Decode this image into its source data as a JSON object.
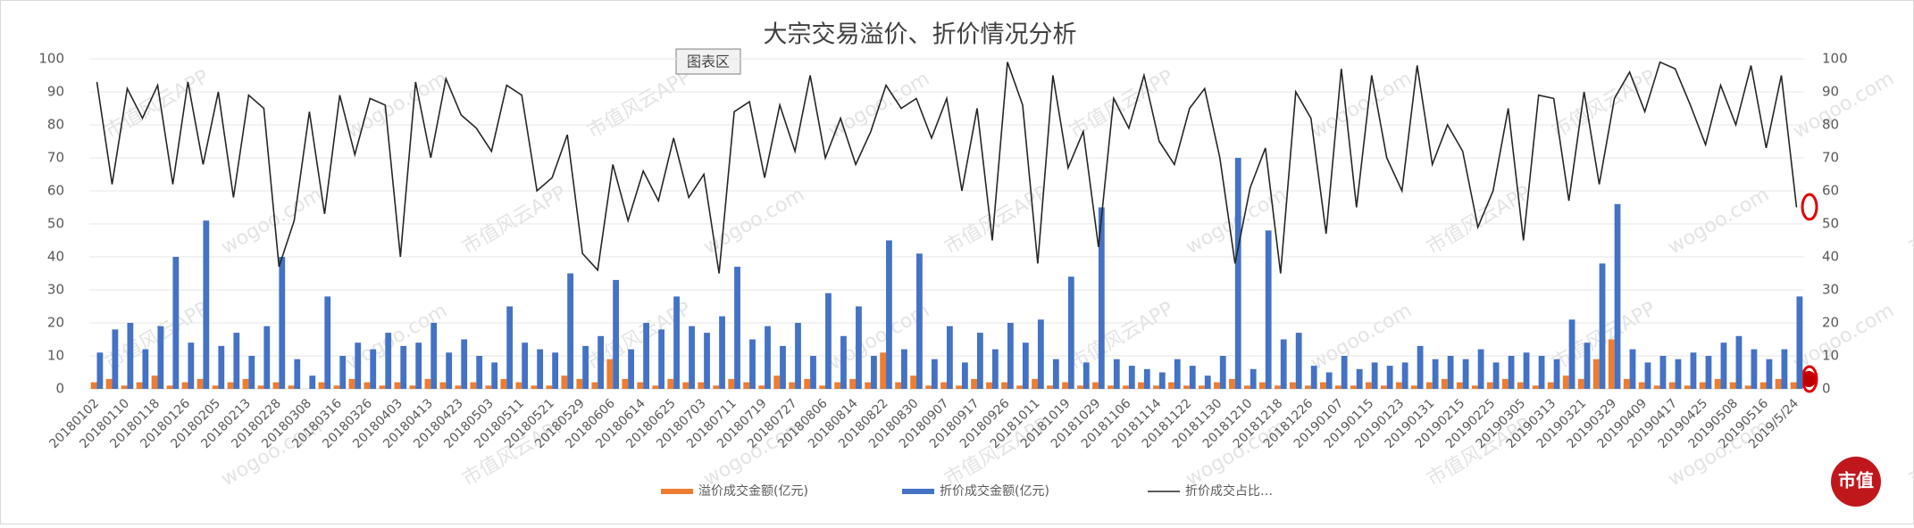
{
  "chart_data": {
    "type": "bar-line",
    "title": "大宗交易溢价、折价情况分析",
    "categories": [
      "20180102",
      null,
      "20180110",
      null,
      "20180118",
      null,
      "20180126",
      null,
      "20180205",
      null,
      "20180213",
      null,
      "20180228",
      null,
      "20180308",
      null,
      "20180316",
      null,
      "20180326",
      null,
      "20180403",
      null,
      "20180413",
      null,
      "20180423",
      null,
      "20180503",
      null,
      "20180511",
      null,
      "20180521",
      null,
      "20180529",
      null,
      "20180606",
      null,
      "20180614",
      null,
      "20180625",
      null,
      "20180703",
      null,
      "20180711",
      null,
      "20180719",
      null,
      "20180727",
      null,
      "20180806",
      null,
      "20180814",
      null,
      "20180822",
      null,
      "20180830",
      null,
      "20180907",
      null,
      "20180917",
      null,
      "20180926",
      null,
      "20181011",
      null,
      "20181019",
      null,
      "20181029",
      null,
      "20181106",
      null,
      "20181114",
      null,
      "20181122",
      null,
      "20181130",
      null,
      "20181210",
      null,
      "20181218",
      null,
      "20181226",
      null,
      "20190107",
      null,
      "20190115",
      null,
      "20190123",
      null,
      "20190131",
      null,
      "20190215",
      null,
      "20190225",
      null,
      "20190305",
      null,
      "20190313",
      null,
      "20190321",
      null,
      "20190329",
      null,
      "20190409",
      null,
      "20190417",
      null,
      "20190425",
      null,
      "20190508",
      null,
      "20190516",
      null,
      "2019/5/24"
    ],
    "series": [
      {
        "name": "溢价成交金额(亿元)",
        "color": "#ed7d31",
        "kind": "bar",
        "values": [
          2,
          3,
          1,
          2,
          4,
          1,
          2,
          3,
          1,
          2,
          3,
          1,
          2,
          1,
          0,
          2,
          1,
          3,
          2,
          1,
          2,
          1,
          3,
          2,
          1,
          2,
          1,
          3,
          2,
          1,
          1,
          4,
          3,
          2,
          9,
          3,
          2,
          1,
          3,
          2,
          2,
          1,
          3,
          2,
          1,
          4,
          2,
          3,
          1,
          2,
          3,
          2,
          11,
          2,
          4,
          1,
          2,
          1,
          3,
          2,
          2,
          1,
          3,
          1,
          2,
          1,
          2,
          1,
          1,
          2,
          1,
          2,
          1,
          1,
          2,
          3,
          1,
          2,
          1,
          2,
          1,
          2,
          1,
          1,
          2,
          1,
          2,
          1,
          2,
          3,
          2,
          1,
          2,
          3,
          2,
          1,
          2,
          4,
          3,
          9,
          15,
          3,
          2,
          1,
          2,
          1,
          2,
          3,
          2,
          1,
          2,
          3,
          2
        ]
      },
      {
        "name": "折价成交金额(亿元)",
        "color": "#4472c4",
        "kind": "bar",
        "values": [
          11,
          18,
          20,
          12,
          19,
          40,
          14,
          51,
          13,
          17,
          10,
          19,
          40,
          9,
          4,
          28,
          10,
          14,
          12,
          17,
          13,
          14,
          20,
          11,
          15,
          10,
          8,
          25,
          14,
          12,
          11,
          35,
          13,
          16,
          33,
          12,
          20,
          18,
          28,
          19,
          17,
          22,
          37,
          15,
          19,
          13,
          20,
          10,
          29,
          16,
          25,
          10,
          45,
          12,
          41,
          9,
          19,
          8,
          17,
          12,
          20,
          14,
          21,
          9,
          34,
          8,
          55,
          9,
          7,
          6,
          5,
          9,
          7,
          4,
          10,
          70,
          6,
          48,
          15,
          17,
          7,
          5,
          10,
          6,
          8,
          7,
          8,
          13,
          9,
          10,
          9,
          12,
          8,
          10,
          11,
          10,
          9,
          21,
          14,
          38,
          56,
          12,
          8,
          10,
          9,
          11,
          10,
          14,
          16,
          12,
          9,
          12,
          28
        ]
      },
      {
        "name": "折价成交占比…",
        "color": "#262626",
        "kind": "line",
        "axis": "y2",
        "values": [
          93,
          62,
          91,
          82,
          92,
          62,
          93,
          68,
          90,
          58,
          89,
          85,
          37,
          51,
          84,
          53,
          89,
          71,
          88,
          86,
          40,
          93,
          70,
          94,
          83,
          79,
          72,
          92,
          89,
          60,
          64,
          77,
          41,
          36,
          68,
          51,
          66,
          57,
          76,
          58,
          65,
          35,
          84,
          87,
          64,
          86,
          72,
          95,
          70,
          82,
          68,
          78,
          92,
          85,
          88,
          76,
          88,
          60,
          85,
          45,
          99,
          86,
          38,
          95,
          67,
          78,
          43,
          88,
          79,
          95,
          75,
          68,
          85,
          91,
          70,
          38,
          61,
          73,
          35,
          90,
          82,
          47,
          97,
          55,
          95,
          70,
          60,
          98,
          68,
          80,
          72,
          49,
          60,
          85,
          45,
          89,
          88,
          57,
          90,
          62,
          88,
          96,
          84,
          99,
          97,
          86,
          74,
          92,
          80,
          98,
          73,
          95,
          55
        ]
      }
    ],
    "ylim": [
      0,
      100
    ],
    "yticks": [
      0,
      10,
      20,
      30,
      40,
      50,
      60,
      70,
      80,
      90,
      100
    ],
    "y2lim": [
      0,
      100
    ],
    "y2ticks": [
      0,
      10,
      20,
      30,
      40,
      50,
      60,
      70,
      80,
      90,
      100
    ],
    "grid": true,
    "legend": "bottom"
  },
  "tooltip": "图表区",
  "watermark": [
    "市值风云APP",
    "wogoo.com"
  ],
  "logo": "市值"
}
